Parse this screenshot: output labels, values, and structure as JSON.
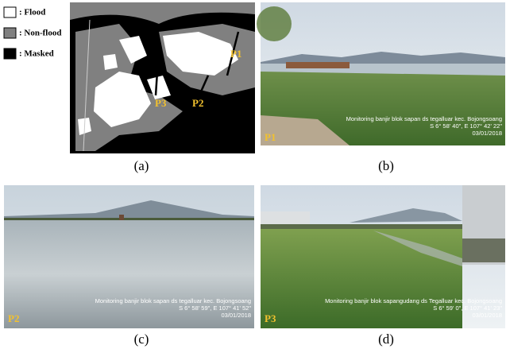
{
  "legend": {
    "items": [
      ": Flood",
      ": Non-flood",
      ": Masked"
    ]
  },
  "map": {
    "labels": [
      "P1",
      "P2",
      "P3"
    ]
  },
  "panels": [
    {
      "letter": "(a)"
    },
    {
      "letter": "(b)",
      "point": "P1",
      "caption": [
        "Monitoring banjir blok sapan ds tegalluar kec. Bojongsoang",
        "S 6° 58' 40\", E 107° 42' 22\"",
        "03/01/2018"
      ]
    },
    {
      "letter": "(c)",
      "point": "P2",
      "caption": [
        "Monitoring banjir blok sapan ds tegalluar kec. Bojongsoang",
        "S 6° 58' 59\", E 107° 41' 52\"",
        "03/01/2018"
      ]
    },
    {
      "letter": "(d)",
      "point": "P3",
      "caption": [
        "Monitoring banjir blok sapangudang ds Tegalluar kec. Bojongsoang",
        "S 6° 59' 0\", E 107° 41' 23\"",
        "03/01/2018"
      ]
    }
  ]
}
